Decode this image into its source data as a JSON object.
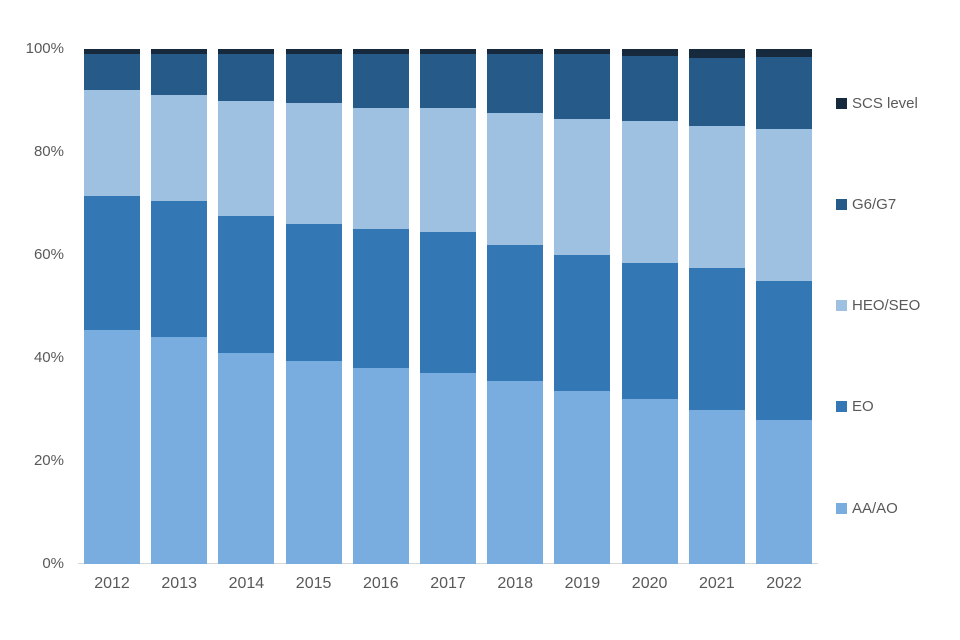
{
  "chart_data": {
    "type": "bar",
    "variant": "stacked-100-percent",
    "title": "",
    "xlabel": "",
    "ylabel": "",
    "ylim": [
      0,
      100
    ],
    "grid": false,
    "legend_position": "right",
    "y_tick_labels": [
      "0%",
      "20%",
      "40%",
      "60%",
      "80%",
      "100%"
    ],
    "y_tick_values": [
      0,
      20,
      40,
      60,
      80,
      100
    ],
    "categories": [
      "2012",
      "2013",
      "2014",
      "2015",
      "2016",
      "2017",
      "2018",
      "2019",
      "2020",
      "2021",
      "2022"
    ],
    "series": [
      {
        "name": "AA/AO",
        "color": "#79ADE0",
        "values": [
          45.5,
          44.0,
          41.0,
          39.5,
          38.0,
          37.0,
          35.5,
          33.5,
          32.0,
          30.0,
          28.0
        ]
      },
      {
        "name": "EO",
        "color": "#3377B4",
        "values": [
          26.0,
          26.5,
          26.5,
          26.5,
          27.0,
          27.5,
          26.5,
          26.5,
          26.5,
          27.5,
          27.0
        ]
      },
      {
        "name": "HEO/SEO",
        "color": "#9EC1E2",
        "values": [
          20.5,
          20.5,
          22.5,
          23.5,
          23.5,
          24.0,
          25.5,
          26.5,
          27.5,
          27.5,
          29.5
        ]
      },
      {
        "name": "G6/G7",
        "color": "#265A88",
        "values": [
          7.0,
          8.0,
          9.0,
          9.5,
          10.5,
          10.5,
          11.5,
          12.5,
          12.7,
          13.2,
          14.0
        ]
      },
      {
        "name": "SCS level",
        "color": "#16293D",
        "values": [
          1.0,
          1.0,
          1.0,
          1.0,
          1.0,
          1.0,
          1.0,
          1.0,
          1.3,
          1.8,
          1.5
        ]
      }
    ],
    "legend_order_top_to_bottom": [
      "SCS level",
      "G6/G7",
      "HEO/SEO",
      "EO",
      "AA/AO"
    ]
  },
  "colors": {
    "axis_line": "#d6d6d6",
    "tick_text": "#595959",
    "legend_text": "#595959",
    "background": "#ffffff"
  }
}
